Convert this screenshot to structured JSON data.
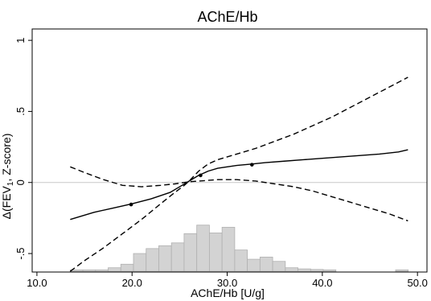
{
  "chart_data": {
    "type": "line",
    "title": "AChE/Hb",
    "xlabel": "AChE/Hb [U/g]",
    "ylabel_main": "Δ(FEV",
    "ylabel_sub": "1",
    "ylabel_rest": ", Z-score)",
    "xlim": [
      9.5,
      51
    ],
    "ylim": [
      -0.63,
      1.08
    ],
    "xticks": [
      {
        "value": 10,
        "label": "10.0"
      },
      {
        "value": 20,
        "label": "20.0"
      },
      {
        "value": 30,
        "label": "30.0"
      },
      {
        "value": 40,
        "label": "40.0"
      },
      {
        "value": 50,
        "label": "50.0"
      }
    ],
    "yticks": [
      {
        "value": 1,
        "label": "1"
      },
      {
        "value": 0.5,
        "label": ".5"
      },
      {
        "value": 0,
        "label": "0"
      },
      {
        "value": -0.5,
        "label": "-.5"
      }
    ],
    "reference_line": 0,
    "series": [
      {
        "style": "solid",
        "x": [
          13.5,
          16,
          18,
          20,
          22,
          24,
          25,
          26,
          27,
          28,
          29,
          30,
          31,
          32.6,
          34,
          36,
          38,
          40,
          42,
          44,
          46,
          48,
          49
        ],
        "y": [
          -0.26,
          -0.21,
          -0.18,
          -0.15,
          -0.115,
          -0.07,
          -0.03,
          0.01,
          0.05,
          0.08,
          0.1,
          0.11,
          0.12,
          0.13,
          0.14,
          0.15,
          0.16,
          0.17,
          0.18,
          0.19,
          0.2,
          0.215,
          0.23
        ]
      },
      {
        "style": "dashed",
        "x": [
          13.5,
          15,
          17,
          19,
          21,
          23,
          24.5,
          25.5,
          26,
          27,
          28,
          29,
          30,
          31,
          33,
          35,
          37,
          39,
          41,
          43,
          45,
          47,
          49
        ],
        "y": [
          -0.625,
          -0.55,
          -0.46,
          -0.36,
          -0.26,
          -0.15,
          -0.07,
          -0.02,
          0.01,
          0.08,
          0.13,
          0.16,
          0.18,
          0.2,
          0.24,
          0.29,
          0.34,
          0.4,
          0.46,
          0.53,
          0.6,
          0.67,
          0.74
        ]
      },
      {
        "style": "dashed",
        "x": [
          13.5,
          15,
          17,
          19,
          21,
          23,
          24.5,
          25.5,
          26,
          27,
          28,
          29,
          30,
          31,
          33,
          35,
          37,
          39,
          41,
          43,
          45,
          47,
          49
        ],
        "y": [
          0.11,
          0.07,
          0.02,
          -0.02,
          -0.03,
          -0.02,
          -0.01,
          0.0,
          0.005,
          0.01,
          0.015,
          0.02,
          0.02,
          0.02,
          0.01,
          -0.01,
          -0.03,
          -0.06,
          -0.1,
          -0.14,
          -0.18,
          -0.22,
          -0.27
        ]
      }
    ],
    "knots": [
      {
        "x": 19.9,
        "y": -0.155
      },
      {
        "x": 27.2,
        "y": 0.05
      },
      {
        "x": 32.6,
        "y": 0.125
      }
    ],
    "histogram": {
      "bin_width": 1.33,
      "bins": [
        {
          "x": 13.5,
          "y": -0.615
        },
        {
          "x": 14.83,
          "y": -0.615
        },
        {
          "x": 16.16,
          "y": -0.615
        },
        {
          "x": 17.49,
          "y": -0.6
        },
        {
          "x": 18.82,
          "y": -0.575
        },
        {
          "x": 20.15,
          "y": -0.5
        },
        {
          "x": 21.48,
          "y": -0.465
        },
        {
          "x": 22.81,
          "y": -0.445
        },
        {
          "x": 24.14,
          "y": -0.425
        },
        {
          "x": 25.47,
          "y": -0.36
        },
        {
          "x": 26.8,
          "y": -0.3
        },
        {
          "x": 28.13,
          "y": -0.355
        },
        {
          "x": 29.46,
          "y": -0.315
        },
        {
          "x": 30.79,
          "y": -0.475
        },
        {
          "x": 32.12,
          "y": -0.54
        },
        {
          "x": 33.45,
          "y": -0.525
        },
        {
          "x": 34.78,
          "y": -0.555
        },
        {
          "x": 36.11,
          "y": -0.6
        },
        {
          "x": 37.44,
          "y": -0.608
        },
        {
          "x": 38.77,
          "y": -0.612
        },
        {
          "x": 40.1,
          "y": -0.615
        },
        {
          "x": 47.7,
          "y": -0.615
        }
      ]
    }
  },
  "colors": {
    "curve": "#000000",
    "ci": "#000000",
    "histogram_fill": "#d3d3d3",
    "histogram_stroke": "#b0b0b0",
    "reference_line": "#c8c8c8",
    "axis": "#000000"
  }
}
